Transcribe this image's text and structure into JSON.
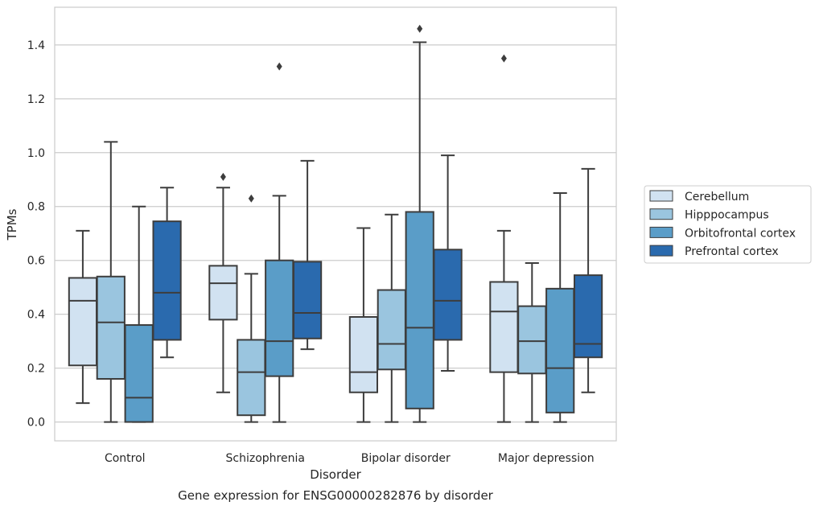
{
  "chart_data": {
    "type": "box",
    "title": "Gene expression for ENSG00000282876 by disorder",
    "xlabel": "Disorder",
    "ylabel": "TPMs",
    "ylim": [
      -0.07,
      1.54
    ],
    "yticks": [
      0.0,
      0.2,
      0.4,
      0.6,
      0.8,
      1.0,
      1.2,
      1.4
    ],
    "ytick_labels": [
      "0.0",
      "0.2",
      "0.4",
      "0.6",
      "0.8",
      "1.0",
      "1.2",
      "1.4"
    ],
    "grid": true,
    "legend_position": "right",
    "categories": [
      "Control",
      "Schizophrenia",
      "Bipolar disorder",
      "Major depression"
    ],
    "series": [
      {
        "name": "Cerebellum",
        "color": "#d1e2f1",
        "boxes": [
          {
            "whislo": 0.07,
            "q1": 0.21,
            "med": 0.45,
            "q3": 0.535,
            "whishi": 0.71,
            "fliers": []
          },
          {
            "whislo": 0.11,
            "q1": 0.38,
            "med": 0.515,
            "q3": 0.58,
            "whishi": 0.87,
            "fliers": [
              0.91
            ]
          },
          {
            "whislo": 0.0,
            "q1": 0.11,
            "med": 0.185,
            "q3": 0.39,
            "whishi": 0.72,
            "fliers": []
          },
          {
            "whislo": 0.0,
            "q1": 0.185,
            "med": 0.41,
            "q3": 0.52,
            "whishi": 0.71,
            "fliers": [
              1.35
            ]
          }
        ]
      },
      {
        "name": "Hipppocampus",
        "color": "#9ac5df",
        "boxes": [
          {
            "whislo": 0.0,
            "q1": 0.16,
            "med": 0.37,
            "q3": 0.54,
            "whishi": 1.04,
            "fliers": []
          },
          {
            "whislo": 0.0,
            "q1": 0.025,
            "med": 0.185,
            "q3": 0.305,
            "whishi": 0.55,
            "fliers": [
              0.83
            ]
          },
          {
            "whislo": 0.0,
            "q1": 0.195,
            "med": 0.29,
            "q3": 0.49,
            "whishi": 0.77,
            "fliers": []
          },
          {
            "whislo": 0.0,
            "q1": 0.18,
            "med": 0.3,
            "q3": 0.43,
            "whishi": 0.59,
            "fliers": []
          }
        ]
      },
      {
        "name": "Orbitofrontal cortex",
        "color": "#5a9dc8",
        "boxes": [
          {
            "whislo": 0.0,
            "q1": 0.0,
            "med": 0.09,
            "q3": 0.36,
            "whishi": 0.8,
            "fliers": []
          },
          {
            "whislo": 0.0,
            "q1": 0.17,
            "med": 0.3,
            "q3": 0.6,
            "whishi": 0.84,
            "fliers": [
              1.32
            ]
          },
          {
            "whislo": 0.0,
            "q1": 0.05,
            "med": 0.35,
            "q3": 0.78,
            "whishi": 1.41,
            "fliers": [
              1.46
            ]
          },
          {
            "whislo": 0.0,
            "q1": 0.035,
            "med": 0.2,
            "q3": 0.495,
            "whishi": 0.85,
            "fliers": []
          }
        ]
      },
      {
        "name": "Prefrontal cortex",
        "color": "#2a6aae",
        "boxes": [
          {
            "whislo": 0.24,
            "q1": 0.305,
            "med": 0.48,
            "q3": 0.745,
            "whishi": 0.87,
            "fliers": []
          },
          {
            "whislo": 0.27,
            "q1": 0.31,
            "med": 0.405,
            "q3": 0.595,
            "whishi": 0.97,
            "fliers": []
          },
          {
            "whislo": 0.19,
            "q1": 0.305,
            "med": 0.45,
            "q3": 0.64,
            "whishi": 0.99,
            "fliers": []
          },
          {
            "whislo": 0.11,
            "q1": 0.24,
            "med": 0.29,
            "q3": 0.545,
            "whishi": 0.94,
            "fliers": []
          }
        ]
      }
    ]
  }
}
